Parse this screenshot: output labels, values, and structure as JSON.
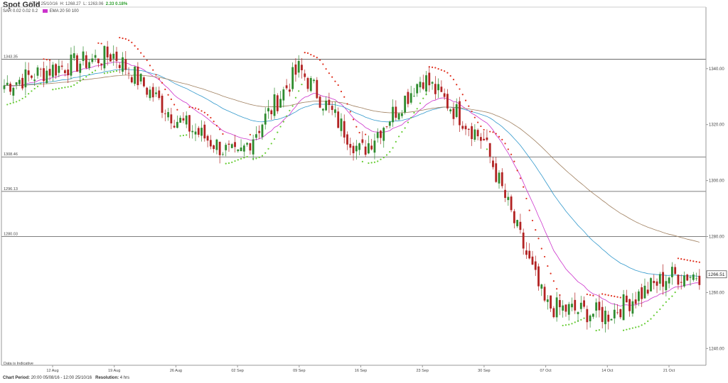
{
  "header": {
    "title": "Spot Gold",
    "timestamp": "07:36 25/10/16",
    "high": "H: 1268.27",
    "low": "L: 1263.06",
    "change": "2.33 0.18%",
    "sar_label": "SAR",
    "sar_params": "0.02 0.02 0.2",
    "ema_label": "EMA",
    "ema_params": "20 50 100"
  },
  "footer": {
    "period_label": "Chart Period:",
    "period_value": "20:00 05/08/16 - 12:00 25/10/16",
    "resolution_label": "Resolution:",
    "resolution_value": "4 hrs"
  },
  "colors": {
    "up": "#2e8b2e",
    "down": "#b22222",
    "sar_above": "#e0301e",
    "sar_below": "#66cc33",
    "ema20": "#cc33cc",
    "ema50": "#3399cc",
    "ema100": "#a08060",
    "hline": "#555555"
  },
  "chart_data": {
    "type": "candlestick",
    "title": "Spot Gold",
    "ylim": [
      1234,
      1362
    ],
    "y_ticks": [
      "1340.00",
      "1320.00",
      "1300.00",
      "1280.00",
      "1260.00",
      "1240.00"
    ],
    "x_ticks": [
      "12 Aug",
      "19 Aug",
      "26 Aug",
      "02 Sep",
      "09 Sep",
      "16 Sep",
      "23 Sep",
      "30 Sep",
      "07 Oct",
      "14 Oct",
      "21 Oct"
    ],
    "horizontal_levels": [
      {
        "label": "1343.35",
        "value": 1343.35
      },
      {
        "label": "1308.46",
        "value": 1308.46
      },
      {
        "label": "1296.13",
        "value": 1296.13
      },
      {
        "label": "1280.03",
        "value": 1280.03
      }
    ],
    "last_price": "1266.51",
    "note": "Data is Indicative",
    "indicators": [
      "SAR 0.02 0.02 0.2",
      "EMA 20 50 100"
    ],
    "series": [
      {
        "name": "close",
        "points": [
          {
            "x": "12 Aug",
            "y": 1340
          },
          {
            "x": "19 Aug",
            "y": 1345
          },
          {
            "x": "26 Aug",
            "y": 1322
          },
          {
            "x": "02 Sep",
            "y": 1308
          },
          {
            "x": "09 Sep",
            "y": 1340
          },
          {
            "x": "16 Sep",
            "y": 1310
          },
          {
            "x": "23 Sep",
            "y": 1337
          },
          {
            "x": "30 Sep",
            "y": 1314
          },
          {
            "x": "07 Oct",
            "y": 1255
          },
          {
            "x": "14 Oct",
            "y": 1252
          },
          {
            "x": "21 Oct",
            "y": 1266
          }
        ]
      }
    ]
  }
}
